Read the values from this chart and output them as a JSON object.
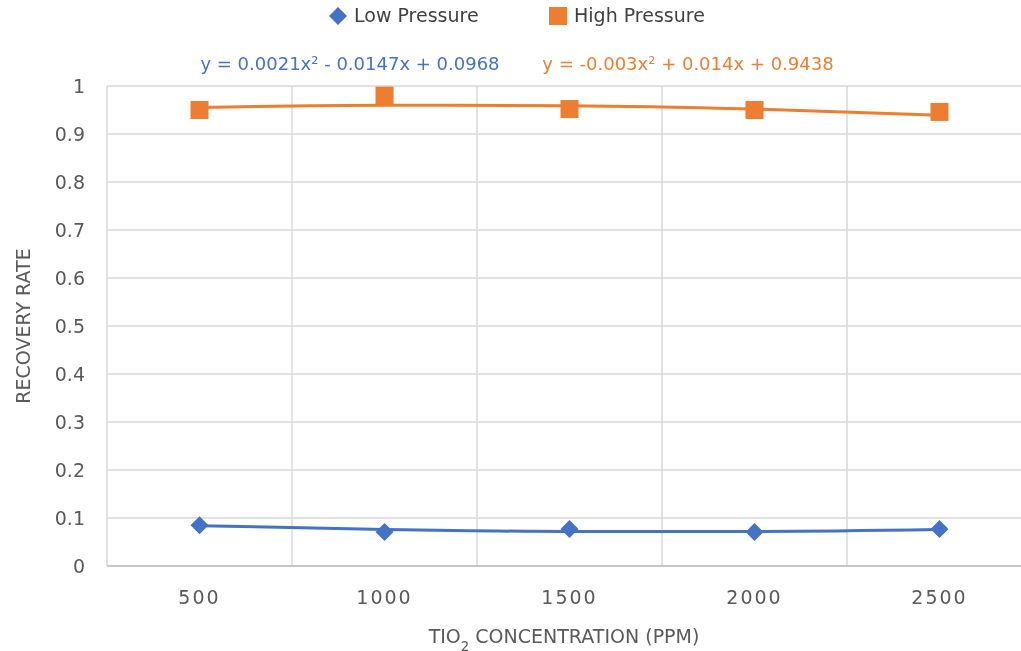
{
  "chart_data": {
    "type": "scatter",
    "xlabel": "TIO$_{2}$ CONCENTRATION (PPM)",
    "ylabel": "RECOVERY RATE",
    "categories": [
      "500",
      "1000",
      "1500",
      "2000",
      "2500"
    ],
    "ylim": [
      0,
      1
    ],
    "yticks": [
      0,
      0.1,
      0.2,
      0.3,
      0.4,
      0.5,
      0.6,
      0.7,
      0.8,
      0.9,
      1
    ],
    "grid": true,
    "legend": "top",
    "annotations": [
      "y = 0.0021x² - 0.0147x + 0.0968",
      "y = -0.003x² + 0.014x + 0.9438"
    ],
    "series": [
      {
        "name": "Low Pressure",
        "marker": "diamond",
        "color": "#4472c4",
        "values": [
          0.085,
          0.071,
          0.077,
          0.071,
          0.077
        ]
      },
      {
        "name": "High Pressure",
        "marker": "square",
        "color": "#ed7d31",
        "values": [
          0.95,
          0.98,
          0.952,
          0.95,
          0.946
        ]
      },
      {
        "type": "line",
        "marker": "none",
        "color": "#4472c4",
        "values": [
          0.084,
          0.076,
          0.072,
          0.072,
          0.076
        ]
      },
      {
        "type": "line",
        "marker": "none",
        "color": "#ed7d31",
        "values": [
          0.955,
          0.96,
          0.959,
          0.952,
          0.939
        ]
      }
    ]
  }
}
